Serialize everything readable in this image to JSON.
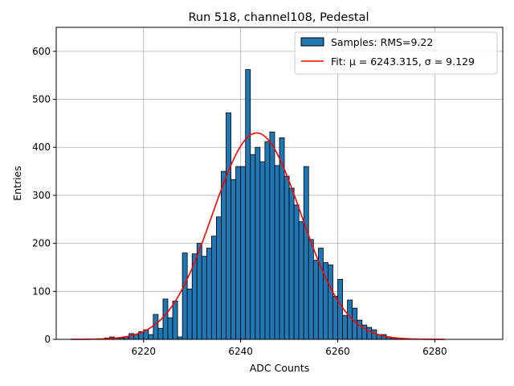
{
  "chart_data": {
    "type": "bar",
    "title": "Run 518, channel108, Pedestal",
    "xlabel": "ADC Counts",
    "ylabel": "Entries",
    "xlim": [
      6202,
      6294
    ],
    "ylim": [
      0,
      650
    ],
    "xticks": [
      6220,
      6240,
      6260,
      6280
    ],
    "yticks": [
      0,
      100,
      200,
      300,
      400,
      500,
      600
    ],
    "grid": true,
    "legend_position": "top-right",
    "colors": {
      "bars": "#1f77b4",
      "bar_edge": "#000000",
      "fit": "#ff0000",
      "grid": "#b0b0b0"
    },
    "series": [
      {
        "name": "Samples: RMS=9.22",
        "kind": "histogram",
        "bins": [
          [
            6212,
            3
          ],
          [
            6213,
            5
          ],
          [
            6214,
            3
          ],
          [
            6215,
            3
          ],
          [
            6216,
            5
          ],
          [
            6217,
            12
          ],
          [
            6218,
            10
          ],
          [
            6219,
            16
          ],
          [
            6220,
            20
          ],
          [
            6221,
            10
          ],
          [
            6222,
            52
          ],
          [
            6223,
            23
          ],
          [
            6224,
            84
          ],
          [
            6225,
            45
          ],
          [
            6226,
            80
          ],
          [
            6227,
            5
          ],
          [
            6228,
            180
          ],
          [
            6229,
            105
          ],
          [
            6230,
            178
          ],
          [
            6231,
            200
          ],
          [
            6232,
            173
          ],
          [
            6233,
            190
          ],
          [
            6234,
            215
          ],
          [
            6235,
            255
          ],
          [
            6236,
            350
          ],
          [
            6237,
            472
          ],
          [
            6238,
            333
          ],
          [
            6239,
            360
          ],
          [
            6240,
            360
          ],
          [
            6241,
            562
          ],
          [
            6242,
            385
          ],
          [
            6243,
            400
          ],
          [
            6244,
            370
          ],
          [
            6245,
            412
          ],
          [
            6246,
            432
          ],
          [
            6247,
            362
          ],
          [
            6248,
            420
          ],
          [
            6249,
            340
          ],
          [
            6250,
            315
          ],
          [
            6251,
            280
          ],
          [
            6252,
            245
          ],
          [
            6253,
            360
          ],
          [
            6254,
            208
          ],
          [
            6255,
            165
          ],
          [
            6256,
            190
          ],
          [
            6257,
            160
          ],
          [
            6258,
            155
          ],
          [
            6259,
            90
          ],
          [
            6260,
            125
          ],
          [
            6261,
            50
          ],
          [
            6262,
            82
          ],
          [
            6263,
            65
          ],
          [
            6264,
            40
          ],
          [
            6265,
            30
          ],
          [
            6266,
            25
          ],
          [
            6267,
            20
          ],
          [
            6268,
            10
          ],
          [
            6269,
            10
          ],
          [
            6270,
            5
          ],
          [
            6271,
            3
          ],
          [
            6272,
            2
          ],
          [
            6273,
            1
          ]
        ]
      },
      {
        "name": "Fit: μ = 6243.315, σ = 9.129",
        "kind": "gaussian-fit",
        "mu": 6243.315,
        "sigma": 9.129,
        "amplitude": 430,
        "x_range": [
          6205,
          6282
        ]
      }
    ]
  }
}
